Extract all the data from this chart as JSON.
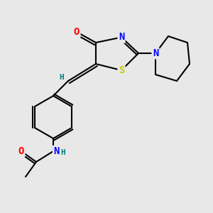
{
  "bg_color": "#e8e8e8",
  "bond_color": "#000000",
  "atom_colors": {
    "O": "#ff0000",
    "N": "#0000ff",
    "S": "#cccc00",
    "H": "#008080",
    "C": "#000000"
  },
  "font_size": 9,
  "line_width": 1.5
}
